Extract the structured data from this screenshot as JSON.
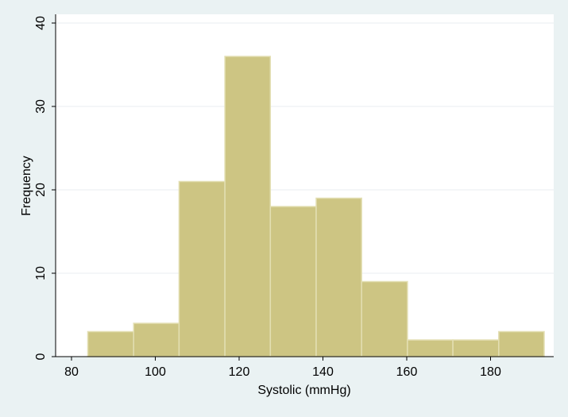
{
  "chart_data": {
    "type": "bar",
    "subtype": "histogram",
    "xlabel": "Systolic (mmHg)",
    "ylabel": "Frequency",
    "xlim": [
      80,
      195
    ],
    "ylim": [
      0,
      40
    ],
    "x_ticks": [
      80,
      100,
      120,
      140,
      160,
      180
    ],
    "y_ticks": [
      0,
      10,
      20,
      30,
      40
    ],
    "grid": true,
    "legend": "none",
    "bins": [
      {
        "start": 84.2,
        "end": 95.2,
        "value": 3
      },
      {
        "start": 95.2,
        "end": 106.1,
        "value": 4
      },
      {
        "start": 106.1,
        "end": 117.1,
        "value": 21
      },
      {
        "start": 117.1,
        "end": 128.0,
        "value": 36
      },
      {
        "start": 128.0,
        "end": 139.0,
        "value": 18
      },
      {
        "start": 139.0,
        "end": 149.9,
        "value": 19
      },
      {
        "start": 149.9,
        "end": 160.9,
        "value": 9
      },
      {
        "start": 160.9,
        "end": 171.8,
        "value": 2
      },
      {
        "start": 171.8,
        "end": 182.8,
        "value": 2
      },
      {
        "start": 182.8,
        "end": 193.7,
        "value": 3
      }
    ],
    "colors": {
      "background": "#eaf2f3",
      "plot_area": "#ffffff",
      "bar_fill": "#cdc583",
      "bar_stroke": "#e3dfb3",
      "grid": "#e9eef0",
      "axis": "#000000"
    }
  }
}
